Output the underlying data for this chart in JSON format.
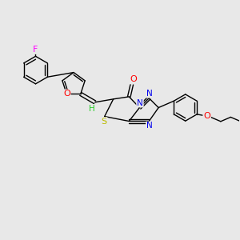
{
  "background_color": "#e8e8e8",
  "bond_color": "#000000",
  "figsize": [
    3.0,
    3.0
  ],
  "dpi": 100,
  "atoms": {
    "F": {
      "color": "#ff00ff"
    },
    "O": {
      "color": "#ff0000"
    },
    "N": {
      "color": "#0000ee"
    },
    "S": {
      "color": "#bbbb00"
    },
    "H": {
      "color": "#22cc22"
    },
    "C": {
      "color": "#000000"
    }
  }
}
